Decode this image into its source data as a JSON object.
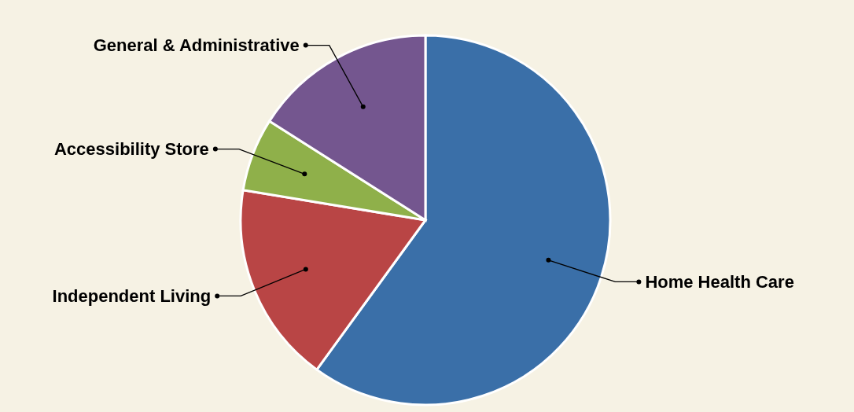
{
  "chart_data": {
    "type": "pie",
    "categories": [
      "Home Health Care",
      "Independent Living",
      "Accessibility Store",
      "General & Administrative"
    ],
    "values": [
      60,
      17.6,
      6.4,
      16
    ],
    "colors": [
      "#3a6fa8",
      "#b94545",
      "#8fb04a",
      "#74568f"
    ]
  }
}
